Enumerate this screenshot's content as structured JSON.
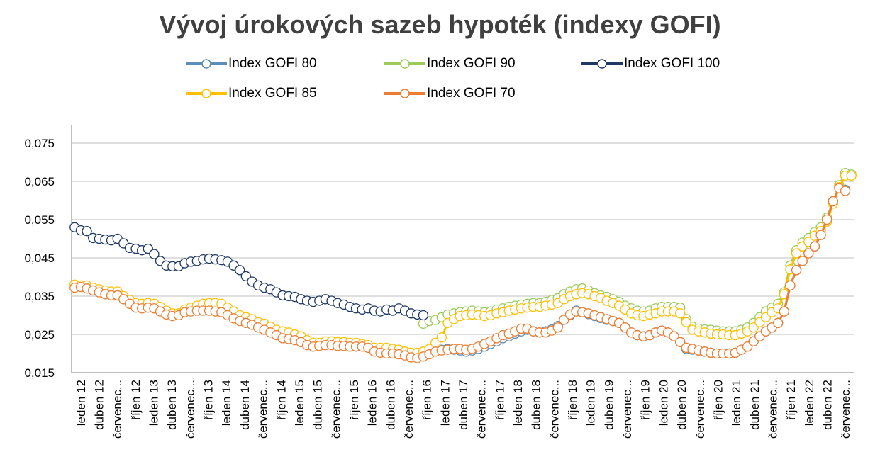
{
  "chart_data": {
    "type": "line",
    "title": "Vývoj úrokových sazeb hypoték (indexy GOFI)",
    "ylim": [
      0.015,
      0.075
    ],
    "y_ticks": [
      "0,015",
      "0,025",
      "0,035",
      "0,045",
      "0,055",
      "0,065",
      "0,075"
    ],
    "y_tick_values": [
      0.015,
      0.025,
      0.035,
      0.045,
      0.055,
      0.065,
      0.075
    ],
    "grid": true,
    "legend_position": "top",
    "x_labels": [
      "leden 12",
      "duben 12",
      "červenec...",
      "říjen 12",
      "leden 13",
      "duben 13",
      "červenec...",
      "říjen 13",
      "leden 14",
      "duben 14",
      "červenec...",
      "říjen 14",
      "leden 15",
      "duben 15",
      "červenec...",
      "říjen 15",
      "leden 16",
      "duben 16",
      "červenec...",
      "říjen 16",
      "leden 17",
      "duben 17",
      "červenec...",
      "říjen 17",
      "leden 18",
      "duben 18",
      "červenec...",
      "říjen 18",
      "leden 19",
      "duben 19",
      "červenec...",
      "říjen 19",
      "leden 20",
      "duben 20",
      "červenec...",
      "říjen 20",
      "leden 21",
      "duben 21",
      "červenec...",
      "říjen 21",
      "leden 22",
      "duben 22",
      "červenec..."
    ],
    "series": [
      {
        "name": "Index GOFI 80",
        "color": "#5b8db8",
        "values": [
          null,
          null,
          null,
          null,
          null,
          null,
          null,
          null,
          null,
          null,
          null,
          null,
          null,
          null,
          null,
          null,
          null,
          null,
          null,
          null,
          null,
          null,
          null,
          null,
          null,
          null,
          null,
          null,
          null,
          null,
          null,
          null,
          null,
          null,
          null,
          null,
          null,
          null,
          null,
          null,
          null,
          null,
          null,
          null,
          null,
          null,
          null,
          null,
          null,
          null,
          null,
          null,
          null,
          null,
          null,
          null,
          null,
          null,
          null,
          null,
          0.021,
          0.0212,
          0.021,
          0.0208,
          0.0205,
          0.0208,
          0.0212,
          0.0218,
          0.0225,
          0.0232,
          0.024,
          0.0245,
          0.0252,
          0.0258,
          0.0262,
          0.0258,
          0.0255,
          0.0258,
          0.0263,
          0.0272,
          0.0288,
          0.03,
          0.0312,
          0.0308,
          0.0303,
          0.0298,
          0.0293,
          0.0288,
          0.0285,
          0.028,
          0.0268,
          0.0255,
          0.0248,
          0.0245,
          0.0248,
          0.0255,
          0.026,
          0.0255,
          0.0245,
          0.023,
          0.0212,
          0.021,
          0.0208,
          0.0205,
          0.0202,
          0.02,
          0.02,
          0.02,
          0.0202,
          0.021,
          0.0218,
          0.0232,
          0.0245,
          0.0258,
          0.0268,
          0.028,
          0.031,
          0.0378,
          0.0418,
          0.0442,
          0.0462,
          0.048,
          0.051,
          0.055,
          0.0598,
          0.0635,
          0.0628
        ]
      },
      {
        "name": "Index GOFI 90",
        "color": "#9bcc59",
        "values": [
          null,
          null,
          null,
          null,
          null,
          null,
          null,
          null,
          null,
          null,
          null,
          null,
          null,
          null,
          null,
          null,
          null,
          null,
          null,
          null,
          null,
          null,
          null,
          null,
          null,
          null,
          null,
          null,
          null,
          null,
          null,
          null,
          null,
          null,
          null,
          null,
          null,
          null,
          null,
          null,
          null,
          null,
          null,
          null,
          null,
          null,
          null,
          null,
          null,
          null,
          null,
          null,
          null,
          null,
          null,
          null,
          null,
          0.0278,
          0.0285,
          0.0288,
          0.0295,
          0.0302,
          0.0305,
          0.0308,
          0.031,
          0.0312,
          0.031,
          0.0308,
          0.031,
          0.0315,
          0.0318,
          0.0322,
          0.0325,
          0.0328,
          0.033,
          0.0332,
          0.0332,
          0.0335,
          0.034,
          0.0345,
          0.0355,
          0.0362,
          0.0368,
          0.037,
          0.0365,
          0.0358,
          0.0352,
          0.0348,
          0.0342,
          0.0335,
          0.0325,
          0.0318,
          0.0312,
          0.031,
          0.0312,
          0.0318,
          0.0322,
          0.0322,
          0.0322,
          0.032,
          0.029,
          0.027,
          0.0265,
          0.0263,
          0.0262,
          0.026,
          0.0258,
          0.0258,
          0.0258,
          0.0262,
          0.0268,
          0.028,
          0.0295,
          0.031,
          0.032,
          0.033,
          0.036,
          0.043,
          0.047,
          0.049,
          0.0502,
          0.0518,
          0.053,
          0.0555,
          0.0595,
          0.064,
          0.0672,
          0.0668
        ]
      },
      {
        "name": "Index GOFI 100",
        "color": "#1f3864",
        "values": [
          0.053,
          0.0522,
          0.052,
          0.0502,
          0.05,
          0.0498,
          0.0496,
          0.05,
          0.0488,
          0.0476,
          0.0474,
          0.047,
          0.0474,
          0.046,
          0.0442,
          0.043,
          0.0428,
          0.0428,
          0.0436,
          0.044,
          0.0442,
          0.0446,
          0.0448,
          0.0446,
          0.0444,
          0.044,
          0.043,
          0.0418,
          0.0402,
          0.0388,
          0.0378,
          0.0372,
          0.0368,
          0.036,
          0.0352,
          0.035,
          0.0348,
          0.0342,
          0.0338,
          0.0335,
          0.0338,
          0.0342,
          0.0338,
          0.0332,
          0.0328,
          0.0322,
          0.0318,
          0.0315,
          0.0318,
          0.0312,
          0.031,
          0.0315,
          0.0312,
          0.0318,
          0.0312,
          0.0305,
          0.0302,
          0.03
        ]
      },
      {
        "name": "Index GOFI 85",
        "color": "#ffc000",
        "values": [
          0.038,
          0.0378,
          0.0378,
          0.0372,
          0.0368,
          0.0365,
          0.0362,
          0.0362,
          0.035,
          0.034,
          0.0332,
          0.033,
          0.0332,
          0.033,
          0.0322,
          0.0312,
          0.0305,
          0.0305,
          0.0315,
          0.032,
          0.0325,
          0.033,
          0.0332,
          0.0332,
          0.033,
          0.032,
          0.031,
          0.03,
          0.0295,
          0.029,
          0.0282,
          0.0278,
          0.027,
          0.0262,
          0.0258,
          0.0255,
          0.025,
          0.0245,
          0.0235,
          0.0228,
          0.0228,
          0.0232,
          0.0232,
          0.023,
          0.023,
          0.0228,
          0.0228,
          0.0225,
          0.0222,
          0.0215,
          0.0215,
          0.0215,
          0.0212,
          0.021,
          0.0205,
          0.0202,
          0.0202,
          0.0205,
          0.0212,
          0.0228,
          0.0242,
          0.028,
          0.029,
          0.0298,
          0.03,
          0.0302,
          0.03,
          0.0298,
          0.03,
          0.0305,
          0.0308,
          0.0312,
          0.0315,
          0.0318,
          0.032,
          0.0322,
          0.0322,
          0.0325,
          0.0328,
          0.0332,
          0.0342,
          0.035,
          0.0355,
          0.0358,
          0.0355,
          0.035,
          0.0345,
          0.0338,
          0.0332,
          0.0325,
          0.0315,
          0.0305,
          0.03,
          0.0298,
          0.0302,
          0.0305,
          0.031,
          0.031,
          0.031,
          0.0305,
          0.0282,
          0.0262,
          0.0258,
          0.0255,
          0.0252,
          0.025,
          0.025,
          0.0248,
          0.0248,
          0.0252,
          0.0258,
          0.0268,
          0.0282,
          0.0295,
          0.0308,
          0.0318,
          0.0355,
          0.042,
          0.0462,
          0.048,
          0.0492,
          0.0508,
          0.052,
          0.0545,
          0.0592,
          0.0635,
          0.0665,
          0.0665
        ]
      },
      {
        "name": "Index GOFI 70",
        "color": "#ed7d31",
        "values": [
          0.0372,
          0.0374,
          0.037,
          0.0365,
          0.036,
          0.0355,
          0.0352,
          0.0352,
          0.0342,
          0.033,
          0.032,
          0.0318,
          0.032,
          0.0318,
          0.031,
          0.0302,
          0.0298,
          0.03,
          0.0308,
          0.031,
          0.0312,
          0.0312,
          0.0312,
          0.031,
          0.0308,
          0.03,
          0.0292,
          0.0285,
          0.028,
          0.0275,
          0.0268,
          0.0262,
          0.0255,
          0.0248,
          0.024,
          0.0238,
          0.0235,
          0.023,
          0.0222,
          0.0218,
          0.022,
          0.0222,
          0.0222,
          0.022,
          0.022,
          0.0218,
          0.0218,
          0.0218,
          0.0215,
          0.0205,
          0.0202,
          0.02,
          0.02,
          0.0198,
          0.0195,
          0.019,
          0.0188,
          0.0192,
          0.0198,
          0.0205,
          0.0208,
          0.021,
          0.0212,
          0.0212,
          0.021,
          0.0212,
          0.0218,
          0.0225,
          0.0232,
          0.024,
          0.0248,
          0.0252,
          0.0258,
          0.0265,
          0.0265,
          0.0258,
          0.0255,
          0.0255,
          0.026,
          0.0268,
          0.0288,
          0.0302,
          0.031,
          0.0308,
          0.0305,
          0.03,
          0.0295,
          0.029,
          0.0285,
          0.028,
          0.0268,
          0.0255,
          0.0248,
          0.0245,
          0.0248,
          0.0255,
          0.026,
          0.0255,
          0.0245,
          0.023,
          0.0215,
          0.0212,
          0.0208,
          0.0205,
          0.0202,
          0.02,
          0.02,
          0.02,
          0.0202,
          0.021,
          0.0218,
          0.0232,
          0.0245,
          0.0258,
          0.0268,
          0.028,
          0.031,
          0.0378,
          0.0418,
          0.0442,
          0.0462,
          0.048,
          0.051,
          0.055,
          0.0598,
          0.0632,
          0.0625
        ]
      }
    ]
  }
}
